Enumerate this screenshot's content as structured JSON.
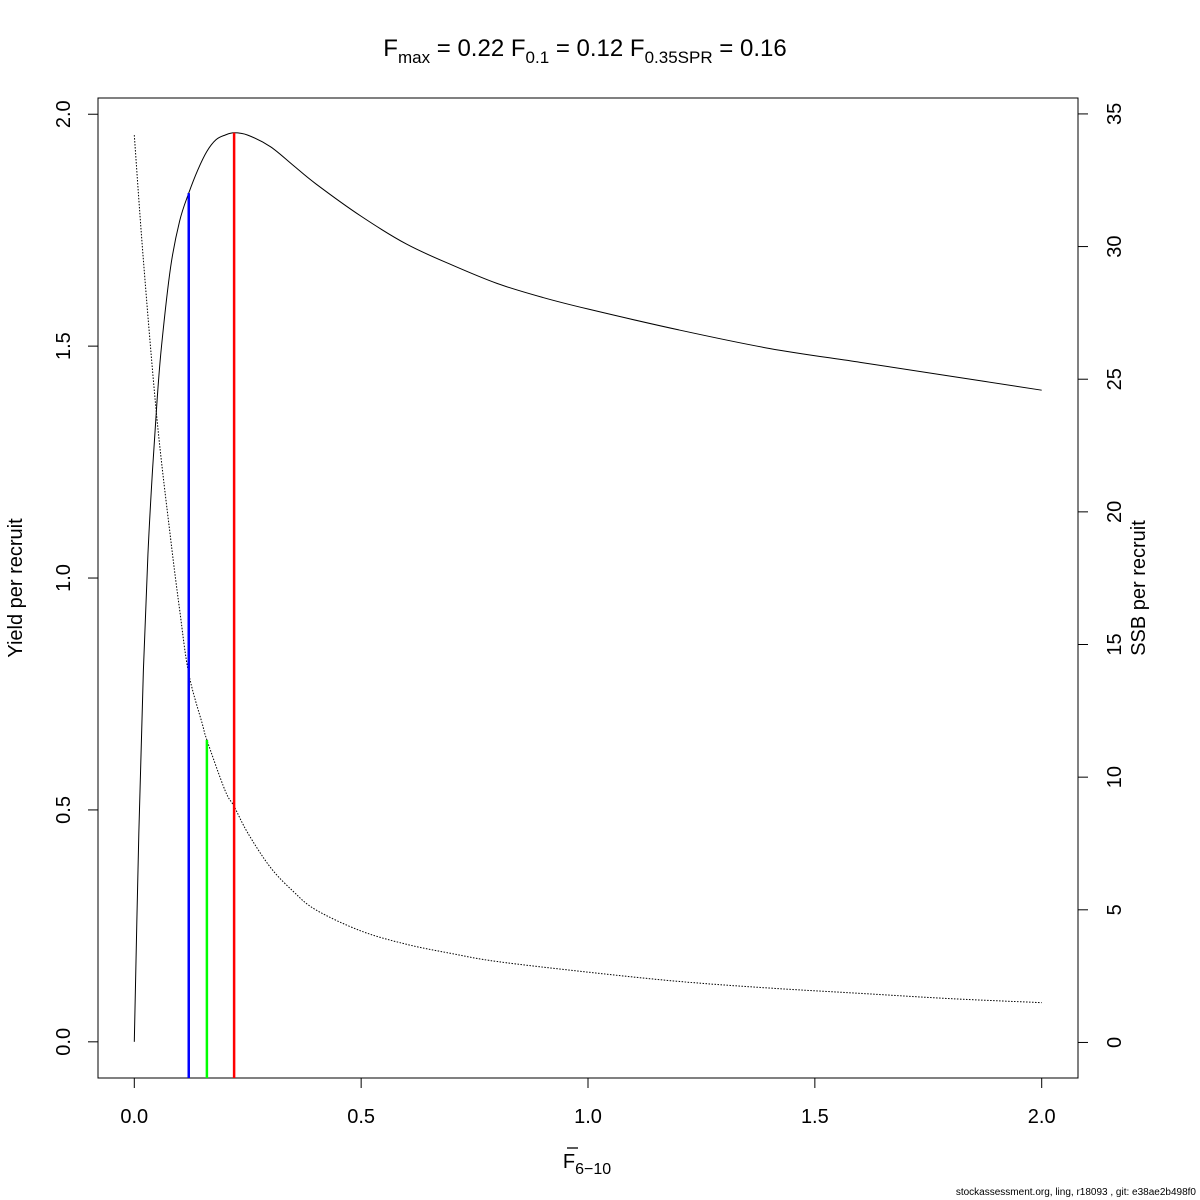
{
  "chart_data": {
    "type": "line",
    "title": {
      "fmax": {
        "sym": "F",
        "sub": "max",
        "value": "0.22"
      },
      "f01": {
        "sym": "F",
        "sub": "0.1",
        "value": "0.12"
      },
      "fspr": {
        "sym": "F",
        "sub": "0.35SPR",
        "value": "0.16"
      }
    },
    "xlabel": {
      "sym": "F",
      "sub": "6−10"
    },
    "ylabel_left": "Yield per recruit",
    "ylabel_right": "SSB per recruit",
    "xlim": [
      -0.08,
      2.08
    ],
    "ylim_left": [
      -0.078,
      2.035
    ],
    "ylim_right": [
      -1.34,
      35.6
    ],
    "x_ticks": [
      0.0,
      0.5,
      1.0,
      1.5,
      2.0
    ],
    "x_tick_labels": [
      "0.0",
      "0.5",
      "1.0",
      "1.5",
      "2.0"
    ],
    "y_left_ticks": [
      0.0,
      0.5,
      1.0,
      1.5,
      2.0
    ],
    "y_left_tick_labels": [
      "0.0",
      "0.5",
      "1.0",
      "1.5",
      "2.0"
    ],
    "y_right_ticks": [
      0,
      5,
      10,
      15,
      20,
      25,
      30,
      35
    ],
    "y_right_tick_labels": [
      "0",
      "5",
      "10",
      "15",
      "20",
      "25",
      "30",
      "35"
    ],
    "grid": false,
    "series": [
      {
        "axis": "left",
        "style": "solid",
        "color": "#000000",
        "x": [
          0.0,
          0.01,
          0.02,
          0.03,
          0.04,
          0.05,
          0.06,
          0.08,
          0.1,
          0.12,
          0.14,
          0.16,
          0.18,
          0.2,
          0.22,
          0.25,
          0.3,
          0.35,
          0.4,
          0.5,
          0.6,
          0.7,
          0.8,
          0.9,
          1.0,
          1.2,
          1.4,
          1.6,
          1.8,
          2.0
        ],
        "y": [
          0.0,
          0.45,
          0.8,
          1.05,
          1.23,
          1.38,
          1.5,
          1.67,
          1.77,
          1.83,
          1.88,
          1.92,
          1.945,
          1.955,
          1.96,
          1.955,
          1.93,
          1.89,
          1.85,
          1.78,
          1.72,
          1.675,
          1.635,
          1.605,
          1.58,
          1.535,
          1.495,
          1.465,
          1.435,
          1.405
        ]
      },
      {
        "axis": "right",
        "style": "dotted",
        "color": "#000000",
        "x": [
          0.0,
          0.02,
          0.05,
          0.08,
          0.1,
          0.12,
          0.15,
          0.16,
          0.2,
          0.22,
          0.25,
          0.3,
          0.35,
          0.4,
          0.5,
          0.6,
          0.7,
          0.8,
          1.0,
          1.2,
          1.4,
          1.6,
          1.8,
          2.0
        ],
        "y": [
          34.2,
          29.5,
          23.5,
          19.0,
          16.3,
          13.9,
          12.0,
          11.4,
          9.5,
          8.9,
          7.9,
          6.6,
          5.7,
          5.0,
          4.2,
          3.7,
          3.35,
          3.05,
          2.65,
          2.3,
          2.05,
          1.85,
          1.65,
          1.5
        ]
      }
    ],
    "reference_lines": [
      {
        "label": "F0.1",
        "x": 0.12,
        "y_top": 1.83,
        "axis": "left",
        "color": "#0000ff"
      },
      {
        "label": "F0.35SPR",
        "x": 0.16,
        "y_top": 11.4,
        "axis": "right",
        "color": "#00ff00"
      },
      {
        "label": "Fmax",
        "x": 0.22,
        "y_top": 1.96,
        "axis": "left",
        "color": "#ff0000"
      }
    ]
  },
  "footer": "stockassessment.org, ling, r18093 , git: e38ae2b498f0"
}
